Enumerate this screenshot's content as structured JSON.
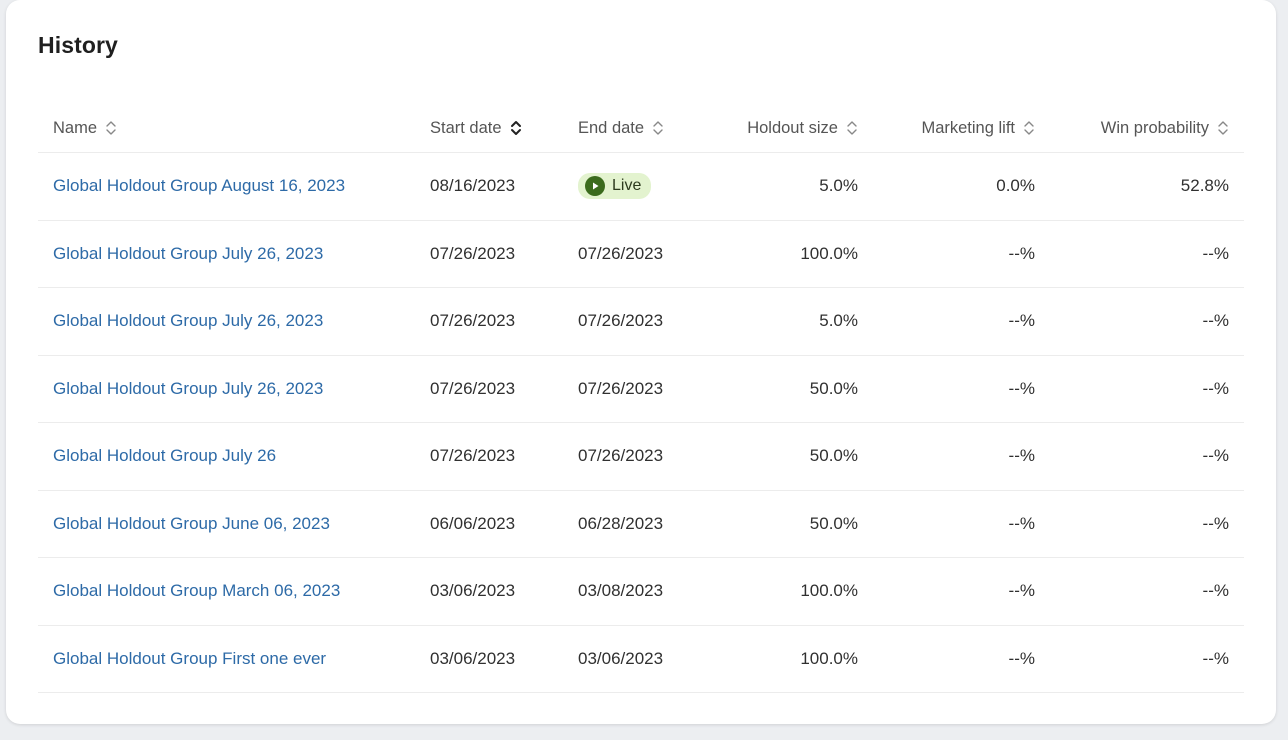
{
  "page": {
    "title": "History"
  },
  "table": {
    "columns": [
      {
        "key": "name",
        "label": "Name"
      },
      {
        "key": "start",
        "label": "Start date"
      },
      {
        "key": "end",
        "label": "End date"
      },
      {
        "key": "holdout",
        "label": "Holdout size"
      },
      {
        "key": "lift",
        "label": "Marketing lift"
      },
      {
        "key": "win",
        "label": "Win probability"
      }
    ],
    "live_label": "Live",
    "rows": [
      {
        "name": "Global Holdout Group August 16, 2023",
        "start": "08/16/2023",
        "end": "",
        "live": true,
        "holdout": "5.0%",
        "lift": "0.0%",
        "win": "52.8%"
      },
      {
        "name": "Global Holdout Group July 26, 2023",
        "start": "07/26/2023",
        "end": "07/26/2023",
        "live": false,
        "holdout": "100.0%",
        "lift": "--%",
        "win": "--%"
      },
      {
        "name": "Global Holdout Group July 26, 2023",
        "start": "07/26/2023",
        "end": "07/26/2023",
        "live": false,
        "holdout": "5.0%",
        "lift": "--%",
        "win": "--%"
      },
      {
        "name": "Global Holdout Group July 26, 2023",
        "start": "07/26/2023",
        "end": "07/26/2023",
        "live": false,
        "holdout": "50.0%",
        "lift": "--%",
        "win": "--%"
      },
      {
        "name": "Global Holdout Group July 26",
        "start": "07/26/2023",
        "end": "07/26/2023",
        "live": false,
        "holdout": "50.0%",
        "lift": "--%",
        "win": "--%"
      },
      {
        "name": "Global Holdout Group June 06, 2023",
        "start": "06/06/2023",
        "end": "06/28/2023",
        "live": false,
        "holdout": "50.0%",
        "lift": "--%",
        "win": "--%"
      },
      {
        "name": "Global Holdout Group March 06, 2023",
        "start": "03/06/2023",
        "end": "03/08/2023",
        "live": false,
        "holdout": "100.0%",
        "lift": "--%",
        "win": "--%"
      },
      {
        "name": "Global Holdout Group First one ever",
        "start": "03/06/2023",
        "end": "03/06/2023",
        "live": false,
        "holdout": "100.0%",
        "lift": "--%",
        "win": "--%"
      }
    ]
  },
  "colors": {
    "link": "#2d6aa7",
    "live_badge_bg": "#e3f3cf",
    "live_badge_icon": "#3b6b1d"
  },
  "icons": {
    "sort": "sort-up-down-icon",
    "live": "play-circle-icon"
  }
}
